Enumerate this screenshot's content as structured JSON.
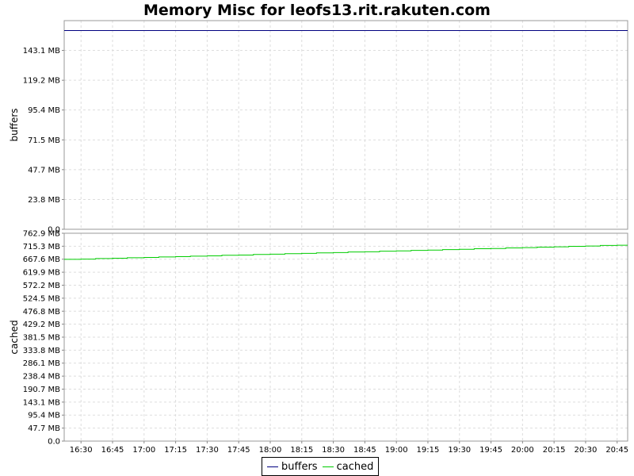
{
  "chart_data": {
    "title": "Memory Misc for leofs13.rit.rakuten.com",
    "type": "line",
    "x_ticks": [
      "16:30",
      "16:45",
      "17:00",
      "17:15",
      "17:30",
      "17:45",
      "18:00",
      "18:15",
      "18:30",
      "18:45",
      "19:00",
      "19:15",
      "19:30",
      "19:45",
      "20:00",
      "20:15",
      "20:30",
      "20:45"
    ],
    "x_range": [
      "16:22",
      "20:50"
    ],
    "legend": {
      "placement": "bottom-center",
      "items": [
        {
          "name": "buffers",
          "color": "#000080"
        },
        {
          "name": "cached",
          "color": "#00cc00"
        }
      ]
    },
    "panels": [
      {
        "id": "buffers",
        "ylabel": "buffers",
        "ylim": [
          0,
          166.9
        ],
        "y_ticks": [
          0.0,
          23.8,
          47.7,
          71.5,
          95.4,
          119.2,
          143.1
        ],
        "y_tick_labels": [
          "0.0",
          "23.8 MB",
          "47.7 MB",
          "71.5 MB",
          "95.4 MB",
          "119.2 MB",
          "143.1 MB"
        ],
        "series": [
          {
            "name": "buffers",
            "color": "#000080",
            "step": false,
            "x": [
              "16:22",
              "20:50"
            ],
            "values": [
              159.0,
              159.0
            ]
          }
        ]
      },
      {
        "id": "cached",
        "ylabel": "cached",
        "ylim": [
          0,
          762.9
        ],
        "y_ticks": [
          0.0,
          47.7,
          95.4,
          143.1,
          190.7,
          238.4,
          286.1,
          333.8,
          381.5,
          429.2,
          476.8,
          524.5,
          572.2,
          619.9,
          667.6,
          715.3,
          762.9
        ],
        "y_tick_labels": [
          "0.0",
          "47.7 MB",
          "95.4 MB",
          "143.1 MB",
          "190.7 MB",
          "238.4 MB",
          "286.1 MB",
          "333.8 MB",
          "381.5 MB",
          "429.2 MB",
          "476.8 MB",
          "524.5 MB",
          "572.2 MB",
          "619.9 MB",
          "667.6 MB",
          "715.3 MB",
          "762.9 MB"
        ],
        "series": [
          {
            "name": "cached",
            "color": "#00cc00",
            "step": true,
            "x": [
              "16:22",
              "16:30",
              "16:37",
              "16:45",
              "16:52",
              "17:00",
              "17:07",
              "17:15",
              "17:22",
              "17:30",
              "17:37",
              "17:45",
              "17:52",
              "18:00",
              "18:07",
              "18:15",
              "18:22",
              "18:30",
              "18:37",
              "18:45",
              "18:52",
              "19:00",
              "19:07",
              "19:15",
              "19:22",
              "19:30",
              "19:37",
              "19:45",
              "19:52",
              "20:00",
              "20:07",
              "20:15",
              "20:22",
              "20:30",
              "20:37",
              "20:45",
              "20:50"
            ],
            "values": [
              667,
              668,
              670,
              671,
              673,
              674,
              676,
              677,
              679,
              680,
              682,
              683,
              685,
              686,
              688,
              689,
              691,
              692,
              694,
              695,
              697,
              698,
              700,
              701,
              703,
              704,
              706,
              707,
              709,
              710,
              712,
              713,
              715,
              716,
              718,
              719,
              719
            ]
          }
        ]
      }
    ]
  }
}
